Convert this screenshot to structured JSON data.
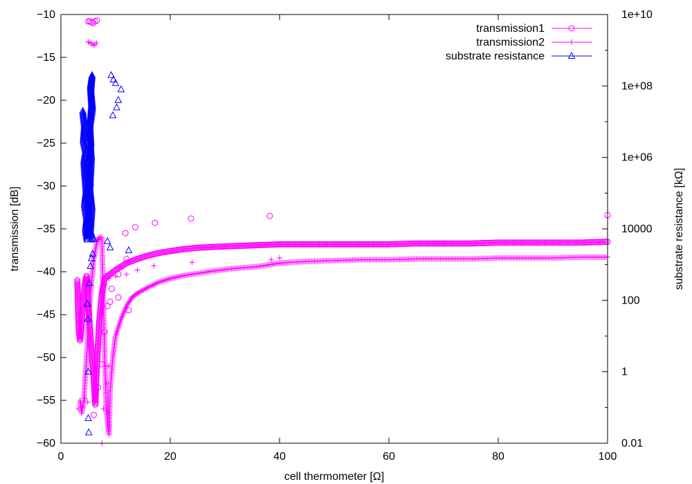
{
  "chart_data": {
    "type": "line",
    "title": "",
    "xlabel": "cell thermometer [Ω]",
    "ylabel": "transmission [dB]",
    "y2label": "substrate resistance [kΩ]",
    "xlim": [
      0,
      100
    ],
    "ylim": [
      -60,
      -10
    ],
    "y2lim": [
      0.01,
      10000000000
    ],
    "y2scale": "log",
    "grid": false,
    "legend_position": "top-right",
    "xticks": [
      "0",
      "20",
      "40",
      "60",
      "80",
      "100"
    ],
    "yticks": [
      "-60",
      "-55",
      "-50",
      "-45",
      "-40",
      "-35",
      "-30",
      "-25",
      "-20",
      "-15",
      "-10"
    ],
    "y2ticks": [
      "0.01",
      "1",
      "100",
      "10000",
      "1e+06",
      "1e+08",
      "1e+10"
    ],
    "series": [
      {
        "name": "transmission1",
        "axis": "left",
        "color": "#ff00ff",
        "marker": "circle",
        "dense_points": [
          [
            3.0,
            -41.0
          ],
          [
            3.1,
            -43.0
          ],
          [
            3.2,
            -45.5
          ],
          [
            3.3,
            -47.0
          ],
          [
            3.5,
            -48.0
          ],
          [
            3.7,
            -47.0
          ],
          [
            3.9,
            -45.0
          ],
          [
            4.1,
            -43.5
          ],
          [
            4.3,
            -42.0
          ],
          [
            4.5,
            -41.0
          ],
          [
            4.7,
            -40.5
          ],
          [
            4.9,
            -42.5
          ],
          [
            5.1,
            -44.5
          ],
          [
            5.3,
            -46.5
          ],
          [
            5.5,
            -48.5
          ],
          [
            5.7,
            -50.0
          ],
          [
            5.9,
            -51.5
          ],
          [
            6.1,
            -53.5
          ],
          [
            6.3,
            -55.5
          ],
          [
            6.5,
            -52.0
          ],
          [
            7.0,
            -46.0
          ],
          [
            7.5,
            -42.5
          ],
          [
            8.0,
            -40.8
          ],
          [
            8.5,
            -40.5
          ],
          [
            9.0,
            -40.3
          ],
          [
            10,
            -39.8
          ],
          [
            12,
            -39.0
          ],
          [
            14,
            -38.5
          ],
          [
            16,
            -38.1
          ],
          [
            18,
            -37.8
          ],
          [
            20,
            -37.6
          ],
          [
            22,
            -37.4
          ],
          [
            25,
            -37.2
          ],
          [
            28,
            -37.1
          ],
          [
            32,
            -37.0
          ],
          [
            36,
            -36.9
          ],
          [
            40,
            -36.8
          ],
          [
            45,
            -36.8
          ],
          [
            50,
            -36.8
          ],
          [
            55,
            -36.8
          ],
          [
            60,
            -36.8
          ],
          [
            65,
            -36.7
          ],
          [
            70,
            -36.7
          ],
          [
            75,
            -36.7
          ],
          [
            80,
            -36.6
          ],
          [
            85,
            -36.6
          ],
          [
            90,
            -36.6
          ],
          [
            95,
            -36.6
          ],
          [
            100,
            -36.5
          ]
        ],
        "sparse_points": [
          [
            5.0,
            -10.8
          ],
          [
            5.3,
            -10.8
          ],
          [
            5.6,
            -10.9
          ],
          [
            5.9,
            -11.0
          ],
          [
            6.2,
            -10.8
          ],
          [
            6.6,
            -10.7
          ],
          [
            6.0,
            -56.7
          ],
          [
            6.8,
            -53.5
          ],
          [
            7.5,
            -50.8
          ],
          [
            8.0,
            -47.0
          ],
          [
            8.5,
            -44.0
          ],
          [
            9.3,
            -42.0
          ],
          [
            10.5,
            -40.3
          ],
          [
            12.0,
            -38.5
          ],
          [
            11.8,
            -35.5
          ],
          [
            13.6,
            -34.8
          ],
          [
            17.2,
            -34.3
          ],
          [
            23.8,
            -33.8
          ],
          [
            38.2,
            -33.5
          ],
          [
            100,
            -33.4
          ],
          [
            12.4,
            -44.5
          ],
          [
            10.5,
            -43.0
          ],
          [
            9.0,
            -43.5
          ]
        ]
      },
      {
        "name": "transmission2",
        "axis": "left",
        "color": "#ff00ff",
        "marker": "plus",
        "dense_points": [
          [
            3.5,
            -55.0
          ],
          [
            3.8,
            -56.5
          ],
          [
            4.2,
            -55.0
          ],
          [
            4.5,
            -52.0
          ],
          [
            4.8,
            -49.0
          ],
          [
            5.0,
            -46.0
          ],
          [
            5.2,
            -44.0
          ],
          [
            5.5,
            -42.0
          ],
          [
            5.8,
            -40.0
          ],
          [
            6.0,
            -38.5
          ],
          [
            6.3,
            -37.5
          ],
          [
            6.6,
            -36.5
          ],
          [
            7.0,
            -36.0
          ],
          [
            7.5,
            -36.0
          ],
          [
            8.0,
            -49.5
          ],
          [
            8.3,
            -56.0
          ],
          [
            8.6,
            -58.0
          ],
          [
            8.8,
            -59.0
          ],
          [
            9.0,
            -54.0
          ],
          [
            9.5,
            -50.0
          ],
          [
            10.0,
            -47.5
          ],
          [
            11.0,
            -45.5
          ],
          [
            12.0,
            -44.0
          ],
          [
            13.0,
            -43.0
          ],
          [
            14.0,
            -42.5
          ],
          [
            16.0,
            -41.8
          ],
          [
            18.0,
            -41.2
          ],
          [
            20.0,
            -40.8
          ],
          [
            22.0,
            -40.5
          ],
          [
            25.0,
            -40.2
          ],
          [
            28.0,
            -39.9
          ],
          [
            32.0,
            -39.6
          ],
          [
            36.0,
            -39.4
          ],
          [
            40.0,
            -39.0
          ],
          [
            42.0,
            -38.9
          ],
          [
            45.0,
            -38.8
          ],
          [
            50.0,
            -38.7
          ],
          [
            55.0,
            -38.6
          ],
          [
            60.0,
            -38.6
          ],
          [
            65.0,
            -38.5
          ],
          [
            70.0,
            -38.5
          ],
          [
            75.0,
            -38.5
          ],
          [
            80.0,
            -38.4
          ],
          [
            85.0,
            -38.4
          ],
          [
            90.0,
            -38.4
          ],
          [
            95.0,
            -38.3
          ],
          [
            100.0,
            -38.3
          ]
        ],
        "sparse_points": [
          [
            5.0,
            -13.2
          ],
          [
            5.3,
            -13.3
          ],
          [
            5.6,
            -13.4
          ],
          [
            5.9,
            -13.6
          ],
          [
            6.2,
            -13.5
          ],
          [
            6.5,
            -13.3
          ],
          [
            3.2,
            -56.0
          ],
          [
            3.9,
            -55.8
          ],
          [
            4.4,
            -54.8
          ],
          [
            4.9,
            -55.2
          ],
          [
            7.5,
            -60.0
          ],
          [
            7.8,
            -56.0
          ],
          [
            8.4,
            -53.0
          ],
          [
            8.7,
            -51.0
          ],
          [
            8.0,
            -41.5
          ],
          [
            8.8,
            -40.8
          ],
          [
            10.0,
            -40.5
          ],
          [
            12.0,
            -40.3
          ],
          [
            14.0,
            -39.8
          ],
          [
            17.0,
            -39.3
          ],
          [
            24.0,
            -38.9
          ],
          [
            38.5,
            -38.6
          ],
          [
            40.0,
            -38.4
          ]
        ]
      },
      {
        "name": "substrate resistance",
        "axis": "right",
        "color": "#0000ff",
        "marker": "triangle",
        "dense_points": [
          [
            4.0,
            20000000
          ],
          [
            4.3,
            8000000
          ],
          [
            4.1,
            3000000
          ],
          [
            4.5,
            1500000
          ],
          [
            4.2,
            800000
          ],
          [
            4.4,
            300000
          ],
          [
            4.6,
            120000
          ],
          [
            4.3,
            50000
          ],
          [
            4.7,
            20000
          ],
          [
            4.5,
            10000
          ],
          [
            4.8,
            5000
          ],
          [
            5.2,
            15000
          ],
          [
            5.0,
            60000
          ],
          [
            5.4,
            200000
          ],
          [
            5.1,
            700000
          ],
          [
            5.5,
            2500000
          ],
          [
            5.3,
            9000000
          ],
          [
            5.6,
            30000000
          ],
          [
            5.4,
            100000000
          ],
          [
            5.7,
            200000000
          ],
          [
            5.5,
            80000000
          ],
          [
            5.8,
            25000000
          ],
          [
            5.2,
            6000000
          ],
          [
            5.6,
            1000000
          ],
          [
            5.3,
            150000
          ],
          [
            5.7,
            40000
          ],
          [
            5.4,
            9000
          ],
          [
            5.8,
            6000
          ],
          [
            5.5,
            7000
          ],
          [
            5.9,
            5500
          ]
        ],
        "sparse_points": [
          [
            4.8,
            80
          ],
          [
            4.9,
            30
          ],
          [
            5.0,
            1
          ],
          [
            5.0,
            0.05
          ],
          [
            5.1,
            0.02
          ],
          [
            5.2,
            300
          ],
          [
            5.4,
            900
          ],
          [
            5.6,
            1500
          ],
          [
            5.8,
            2000
          ],
          [
            4.6,
            8000
          ],
          [
            5.0,
            6000
          ],
          [
            5.5,
            5000
          ],
          [
            8.5,
            4500
          ],
          [
            12.4,
            2500
          ],
          [
            9.0,
            3000
          ],
          [
            6.0,
            5200
          ],
          [
            9.2,
            200000000
          ],
          [
            9.6,
            150000000
          ],
          [
            10.0,
            120000000
          ],
          [
            11.0,
            80000000
          ],
          [
            10.5,
            40000000
          ],
          [
            10.2,
            25000000
          ],
          [
            9.5,
            15000000
          ]
        ]
      }
    ]
  }
}
